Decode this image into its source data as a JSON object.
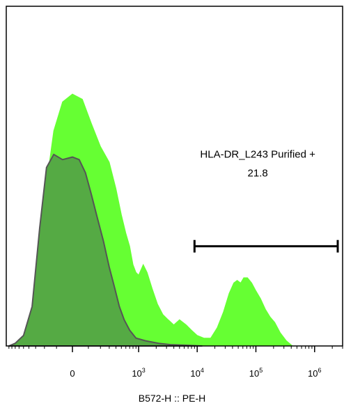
{
  "chart_data": {
    "type": "area",
    "xlabel": "B572-H :: PE-H",
    "x_scale": "biexponential",
    "x_ticks": [
      {
        "value": 0,
        "base": "0",
        "exp": ""
      },
      {
        "value": 1000,
        "base": "10",
        "exp": "3"
      },
      {
        "value": 10000,
        "base": "10",
        "exp": "4"
      },
      {
        "value": 100000,
        "base": "10",
        "exp": "5"
      },
      {
        "value": 1000000,
        "base": "10",
        "exp": "6"
      }
    ],
    "xlim": [
      -1000,
      3000000
    ],
    "ylim": [
      0,
      100
    ],
    "series": [
      {
        "style": "filled",
        "color": "#66ff33",
        "points": [
          [
            -900,
            0
          ],
          [
            -700,
            1
          ],
          [
            -500,
            4
          ],
          [
            -350,
            12
          ],
          [
            -250,
            35
          ],
          [
            -180,
            62
          ],
          [
            -120,
            82
          ],
          [
            -60,
            93
          ],
          [
            0,
            96
          ],
          [
            60,
            94
          ],
          [
            120,
            85
          ],
          [
            200,
            76
          ],
          [
            300,
            70
          ],
          [
            400,
            60
          ],
          [
            500,
            50
          ],
          [
            600,
            43
          ],
          [
            700,
            38
          ],
          [
            800,
            31
          ],
          [
            900,
            28
          ],
          [
            1000,
            27
          ],
          [
            1200,
            31
          ],
          [
            1400,
            28
          ],
          [
            1700,
            22
          ],
          [
            2100,
            16
          ],
          [
            2600,
            12
          ],
          [
            3200,
            10
          ],
          [
            4000,
            8
          ],
          [
            5000,
            10
          ],
          [
            6500,
            8
          ],
          [
            8000,
            6
          ],
          [
            10000,
            4
          ],
          [
            13000,
            3
          ],
          [
            17000,
            3
          ],
          [
            22000,
            7
          ],
          [
            28000,
            13
          ],
          [
            35000,
            20
          ],
          [
            42000,
            24
          ],
          [
            48000,
            25
          ],
          [
            55000,
            24
          ],
          [
            62000,
            26
          ],
          [
            72000,
            26
          ],
          [
            85000,
            24
          ],
          [
            100000,
            21
          ],
          [
            120000,
            18
          ],
          [
            145000,
            14
          ],
          [
            175000,
            11
          ],
          [
            210000,
            9
          ],
          [
            260000,
            5
          ],
          [
            330000,
            2
          ],
          [
            420000,
            0
          ]
        ]
      },
      {
        "style": "outline",
        "color": "#555555",
        "fill": "#55aa44",
        "points": [
          [
            -900,
            0
          ],
          [
            -700,
            1
          ],
          [
            -500,
            4
          ],
          [
            -350,
            15
          ],
          [
            -250,
            45
          ],
          [
            -180,
            68
          ],
          [
            -120,
            73
          ],
          [
            -60,
            71
          ],
          [
            0,
            72
          ],
          [
            40,
            71
          ],
          [
            80,
            66
          ],
          [
            120,
            58
          ],
          [
            170,
            49
          ],
          [
            230,
            40
          ],
          [
            300,
            30
          ],
          [
            380,
            22
          ],
          [
            460,
            15
          ],
          [
            560,
            10
          ],
          [
            700,
            6
          ],
          [
            900,
            3
          ],
          [
            1300,
            2
          ],
          [
            2200,
            1
          ],
          [
            3500,
            0.5
          ],
          [
            6000,
            0.3
          ],
          [
            12000,
            0
          ]
        ]
      }
    ],
    "gate": {
      "name": "HLA-DR_L243 Purified +",
      "value": "21.8",
      "x_range": [
        9000,
        2700000
      ],
      "y_level": 38
    }
  }
}
